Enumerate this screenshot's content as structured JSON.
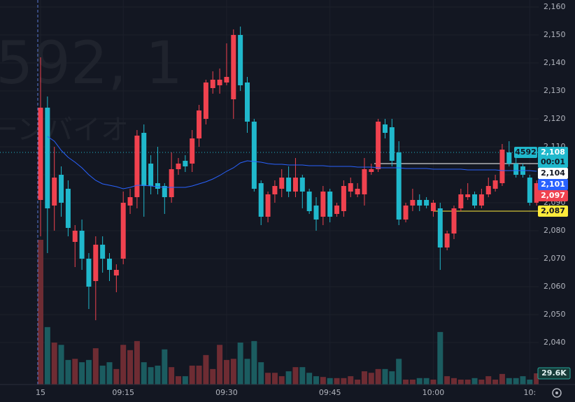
{
  "chart_data": {
    "type": "candlestick",
    "watermark": {
      "symbol": "592, 1",
      "name": "ーンバイオ"
    },
    "symbol_tag": "4592",
    "countdown": "00:01",
    "categories": [
      "15",
      null,
      null,
      null,
      null,
      null,
      null,
      null,
      null,
      null,
      null,
      null,
      "09:15",
      null,
      null,
      null,
      null,
      null,
      null,
      null,
      null,
      null,
      null,
      null,
      null,
      null,
      null,
      "09:30",
      null,
      null,
      null,
      null,
      null,
      null,
      null,
      null,
      null,
      null,
      null,
      null,
      null,
      null,
      "09:45",
      null,
      null,
      null,
      null,
      null,
      null,
      null,
      null,
      null,
      null,
      null,
      null,
      null,
      null,
      "10:00",
      null,
      null,
      null,
      null,
      null,
      null,
      null,
      null,
      null,
      null,
      null,
      null,
      null,
      "10:",
      null
    ],
    "open": [
      2091,
      2124,
      2089,
      2100,
      2095,
      2076,
      2080,
      2070,
      2062,
      2075,
      2070,
      2064,
      2070,
      2089,
      2092,
      2115,
      2104,
      2097,
      2096,
      2092,
      2102,
      2105,
      2104,
      2113,
      2120,
      2131,
      2132,
      2133,
      2127,
      2150,
      2133,
      2119,
      2097,
      2085,
      2093,
      2095,
      2099,
      2094,
      2099,
      2094,
      2089,
      2085,
      2094,
      2086,
      2087,
      2094,
      2093,
      2093,
      2101,
      2102,
      2118,
      2117,
      2108,
      2084,
      2089,
      2091,
      2091,
      2087,
      2088,
      2074,
      2079,
      2088,
      2092,
      2093,
      2089,
      2093,
      2095,
      2097,
      2108,
      2104,
      2103,
      2099,
      2090
    ],
    "high": [
      2142,
      2128,
      2110,
      2103,
      2098,
      2082,
      2084,
      2072,
      2078,
      2078,
      2072,
      2068,
      2094,
      2095,
      2116,
      2118,
      2107,
      2110,
      2097,
      2108,
      2106,
      2107,
      2116,
      2125,
      2134,
      2137,
      2138,
      2147,
      2152,
      2153,
      2135,
      2120,
      2098,
      2094,
      2098,
      2102,
      2103,
      2106,
      2100,
      2095,
      2092,
      2096,
      2095,
      2090,
      2098,
      2099,
      2097,
      2106,
      2104,
      2120,
      2120,
      2120,
      2112,
      2090,
      2095,
      2093,
      2092,
      2091,
      2090,
      2080,
      2089,
      2095,
      2097,
      2094,
      2095,
      2099,
      2100,
      2111,
      2112,
      2107,
      2104,
      2100,
      2098
    ],
    "low": [
      2078,
      2072,
      2080,
      2085,
      2078,
      2067,
      2066,
      2052,
      2048,
      2065,
      2062,
      2058,
      2068,
      2086,
      2088,
      2085,
      2093,
      2093,
      2086,
      2090,
      2100,
      2101,
      2101,
      2110,
      2118,
      2129,
      2129,
      2132,
      2120,
      2130,
      2115,
      2094,
      2082,
      2083,
      2090,
      2092,
      2092,
      2092,
      2088,
      2086,
      2080,
      2082,
      2083,
      2085,
      2085,
      2092,
      2092,
      2089,
      2100,
      2101,
      2113,
      2103,
      2082,
      2083,
      2087,
      2087,
      2088,
      2085,
      2066,
      2073,
      2077,
      2087,
      2091,
      2088,
      2088,
      2092,
      2094,
      2096,
      2103,
      2099,
      2099,
      2089,
      2089
    ],
    "close": [
      2124,
      2088,
      2099,
      2090,
      2081,
      2080,
      2070,
      2060,
      2075,
      2070,
      2066,
      2066,
      2090,
      2092,
      2114,
      2096,
      2096,
      2095,
      2092,
      2102,
      2104,
      2103,
      2113,
      2123,
      2133,
      2134,
      2134,
      2135,
      2150,
      2132,
      2119,
      2095,
      2085,
      2093,
      2096,
      2099,
      2094,
      2099,
      2094,
      2087,
      2084,
      2094,
      2085,
      2089,
      2096,
      2097,
      2095,
      2102,
      2102,
      2119,
      2115,
      2105,
      2084,
      2089,
      2091,
      2089,
      2089,
      2090,
      2074,
      2079,
      2088,
      2093,
      2093,
      2089,
      2093,
      2096,
      2098,
      2109,
      2104,
      2100,
      2100,
      2090,
      2097
    ],
    "up_color": "#f0424f",
    "down_color": "#20b8cc",
    "volume": {
      "values": [
        383,
        152,
        111,
        105,
        65,
        68,
        59,
        65,
        96,
        50,
        59,
        41,
        105,
        91,
        115,
        59,
        46,
        50,
        93,
        46,
        22,
        22,
        50,
        50,
        78,
        41,
        105,
        65,
        68,
        111,
        68,
        115,
        59,
        31,
        31,
        22,
        35,
        46,
        46,
        31,
        22,
        20,
        17,
        17,
        17,
        22,
        13,
        35,
        31,
        41,
        41,
        35,
        68,
        13,
        13,
        17,
        17,
        13,
        139,
        22,
        17,
        13,
        13,
        17,
        13,
        22,
        13,
        28,
        17,
        17,
        22,
        13,
        29.6
      ],
      "last_label": "29.6K",
      "up_color": "#6e2c33",
      "down_color": "#1b5c60"
    },
    "ma": {
      "color": "#2962ff",
      "values": [
        null,
        2113.75,
        2112,
        2108.75,
        2106.25,
        2104.5,
        2102.5,
        2100,
        2098,
        2096.75,
        2096.25,
        2095.75,
        2095,
        2095.5,
        2096.25,
        2096.25,
        2096,
        2095.75,
        2095.5,
        2095.5,
        2095.5,
        2095.5,
        2096,
        2096.75,
        2097.5,
        2098.5,
        2099.75,
        2101.25,
        2102.5,
        2104.25,
        2105,
        2104.75,
        2104.5,
        2104,
        2103.75,
        2103.75,
        2103.5,
        2103.5,
        2103.5,
        2103.25,
        2103.25,
        2103.25,
        2103,
        2103,
        2103,
        2103,
        2102.75,
        2102.75,
        2102.75,
        2102.5,
        2102.5,
        2102.5,
        2102.5,
        2102.25,
        2102.25,
        2102.25,
        2102.25,
        2102,
        2102,
        2102,
        2102,
        2102,
        2101.75,
        2101.75,
        2101.75,
        2101.75,
        2101.75,
        2101.5,
        2101.5,
        2101.5,
        2101.5,
        2101.5,
        2101.25
      ]
    },
    "price_labels": [
      {
        "value": 2108,
        "label": "2,108",
        "color": "#20b8cc"
      },
      {
        "value": 2104,
        "label": "2,104",
        "color": "#ffffff"
      },
      {
        "value": 2101,
        "label": "2,101",
        "color": "#2962ff"
      },
      {
        "value": 2097,
        "label": "2,097",
        "color": "#f0424f"
      },
      {
        "value": 2087,
        "label": "2,087",
        "color": "#ffeb3b"
      }
    ],
    "ylim": [
      2025,
      2162.5
    ],
    "yticks": [
      {
        "value": 2040,
        "label": "2,040"
      },
      {
        "value": 2050,
        "label": "2,050"
      },
      {
        "value": 2060,
        "label": "2,060"
      },
      {
        "value": 2070,
        "label": "2,070"
      },
      {
        "value": 2080,
        "label": "2,080"
      },
      {
        "value": 2090,
        "label": "2,090"
      },
      {
        "value": 2100,
        "label": "2,100"
      },
      {
        "value": 2110,
        "label": "2,110"
      },
      {
        "value": 2120,
        "label": "2,120"
      },
      {
        "value": 2130,
        "label": "2,130"
      },
      {
        "value": 2140,
        "label": "2,140"
      },
      {
        "value": 2150,
        "label": "2,150"
      },
      {
        "value": 2160,
        "label": "2,160"
      }
    ],
    "grid": true
  }
}
